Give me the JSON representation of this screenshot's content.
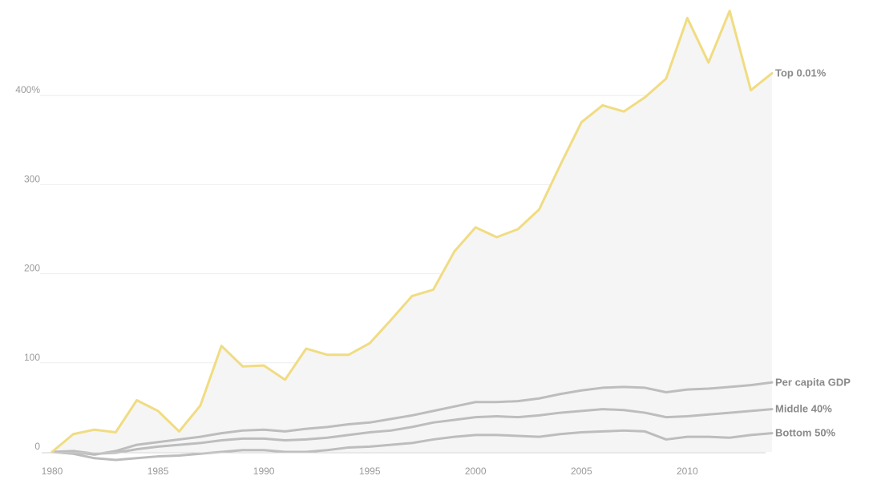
{
  "chart_data": {
    "type": "line",
    "title": "",
    "xlabel": "",
    "ylabel": "",
    "x": [
      1980,
      1981,
      1982,
      1983,
      1984,
      1985,
      1986,
      1987,
      1988,
      1989,
      1990,
      1991,
      1992,
      1993,
      1994,
      1995,
      1996,
      1997,
      1998,
      1999,
      2000,
      2001,
      2002,
      2003,
      2004,
      2005,
      2006,
      2007,
      2008,
      2009,
      2010,
      2011,
      2012,
      2013,
      2014
    ],
    "xlim": [
      1980,
      2014
    ],
    "ylim": [
      0,
      500
    ],
    "x_ticks": [
      1980,
      1985,
      1990,
      1995,
      2000,
      2005,
      2010
    ],
    "y_ticks": [
      {
        "value": 0,
        "label": "0"
      },
      {
        "value": 100,
        "label": "100"
      },
      {
        "value": 200,
        "label": "200"
      },
      {
        "value": 300,
        "label": "300"
      },
      {
        "value": 400,
        "label": "400%"
      }
    ],
    "grid": "horizontal",
    "series": [
      {
        "name": "Top 0.01%",
        "color": "#f0dc82",
        "values": [
          0,
          20,
          25,
          22,
          58,
          46,
          23,
          52,
          119,
          96,
          97,
          81,
          116,
          109,
          109,
          122,
          148,
          175,
          182,
          225,
          252,
          241,
          250,
          272,
          322,
          370,
          389,
          382,
          398,
          419,
          487,
          437,
          495,
          406,
          425
        ]
      },
      {
        "name": "Per capita GDP",
        "color": "#bdbdbd",
        "values": [
          0,
          0,
          -3,
          1,
          8,
          11,
          14,
          17,
          21,
          24,
          25,
          23,
          26,
          28,
          31,
          33,
          37,
          41,
          46,
          51,
          56,
          56,
          57,
          60,
          65,
          69,
          72,
          73,
          72,
          67,
          70,
          71,
          73,
          75,
          78
        ]
      },
      {
        "name": "Middle 40%",
        "color": "#bdbdbd",
        "values": [
          0,
          1,
          -2,
          -1,
          3,
          6,
          8,
          10,
          13,
          15,
          15,
          13,
          14,
          16,
          19,
          22,
          24,
          28,
          33,
          36,
          39,
          40,
          39,
          41,
          44,
          46,
          48,
          47,
          44,
          39,
          40,
          42,
          44,
          46,
          48
        ]
      },
      {
        "name": "Bottom 50%",
        "color": "#bdbdbd",
        "values": [
          0,
          -2,
          -7,
          -9,
          -7,
          -5,
          -4,
          -2,
          0,
          2,
          2,
          0,
          0,
          2,
          5,
          6,
          8,
          10,
          14,
          17,
          19,
          19,
          18,
          17,
          20,
          22,
          23,
          24,
          23,
          14,
          17,
          17,
          16,
          19,
          21
        ]
      }
    ],
    "area_fill": "#f5f5f5",
    "grid_color": "#eeeeee",
    "axis_color": "#d0d0d0",
    "tick_text_color": "#9a9a9a",
    "label_text_color": "#8a8a8a"
  }
}
